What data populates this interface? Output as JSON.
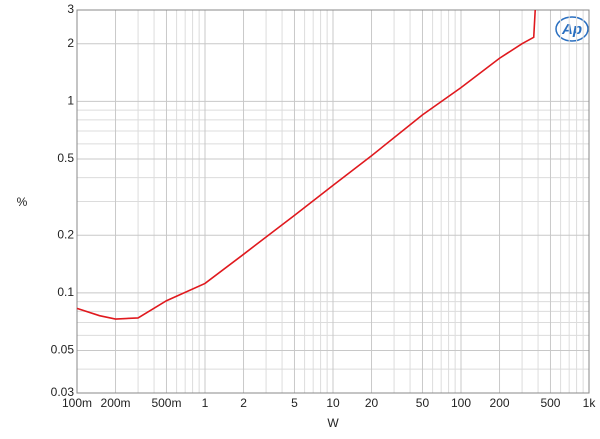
{
  "chart_data": {
    "type": "line",
    "x_label": "W",
    "y_label": "%",
    "logo": "Ap",
    "xscale": "log",
    "yscale": "log",
    "grid": true,
    "xlim": [
      0.1,
      1000
    ],
    "ylim": [
      0.03,
      3
    ],
    "xticks": [
      {
        "value": 0.1,
        "label": "100m"
      },
      {
        "value": 0.2,
        "label": "200m"
      },
      {
        "value": 0.5,
        "label": "500m"
      },
      1,
      2,
      5,
      10,
      20,
      50,
      100,
      200,
      500,
      {
        "value": 1000,
        "label": "1k"
      }
    ],
    "yticks": [
      0.03,
      0.05,
      0.1,
      0.2,
      0.5,
      1,
      2,
      3
    ],
    "minor_xticks": [
      0.3,
      0.4,
      0.6,
      0.7,
      0.8,
      0.9,
      3,
      4,
      6,
      7,
      8,
      9,
      30,
      40,
      60,
      70,
      80,
      90,
      300,
      400,
      600,
      700,
      800,
      900
    ],
    "minor_yticks": [
      0.04,
      0.06,
      0.07,
      0.08,
      0.09,
      0.3,
      0.4,
      0.6,
      0.7,
      0.8,
      0.9
    ],
    "x": [
      0.1,
      0.15,
      0.2,
      0.3,
      0.5,
      1,
      2,
      5,
      10,
      20,
      50,
      100,
      200,
      300,
      370,
      380
    ],
    "series": [
      {
        "color": "#e0191e",
        "values": [
          0.083,
          0.076,
          0.073,
          0.074,
          0.091,
          0.112,
          0.159,
          0.254,
          0.364,
          0.52,
          0.85,
          1.18,
          1.68,
          2.0,
          2.16,
          3.0
        ]
      }
    ]
  }
}
